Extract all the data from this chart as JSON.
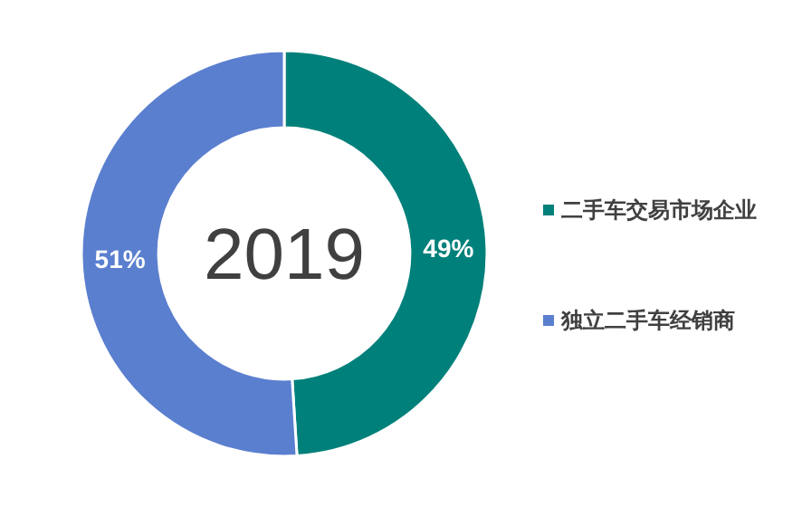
{
  "chart_data": {
    "type": "donut",
    "categories": [
      "二手车交易市场企业",
      "独立二手车经销商"
    ],
    "values": [
      49,
      51
    ],
    "colors": [
      "#00807a",
      "#5b7fcf"
    ],
    "annotations": [
      "2019"
    ],
    "value_labels": [
      "49%",
      "51%"
    ],
    "legend": "right"
  }
}
